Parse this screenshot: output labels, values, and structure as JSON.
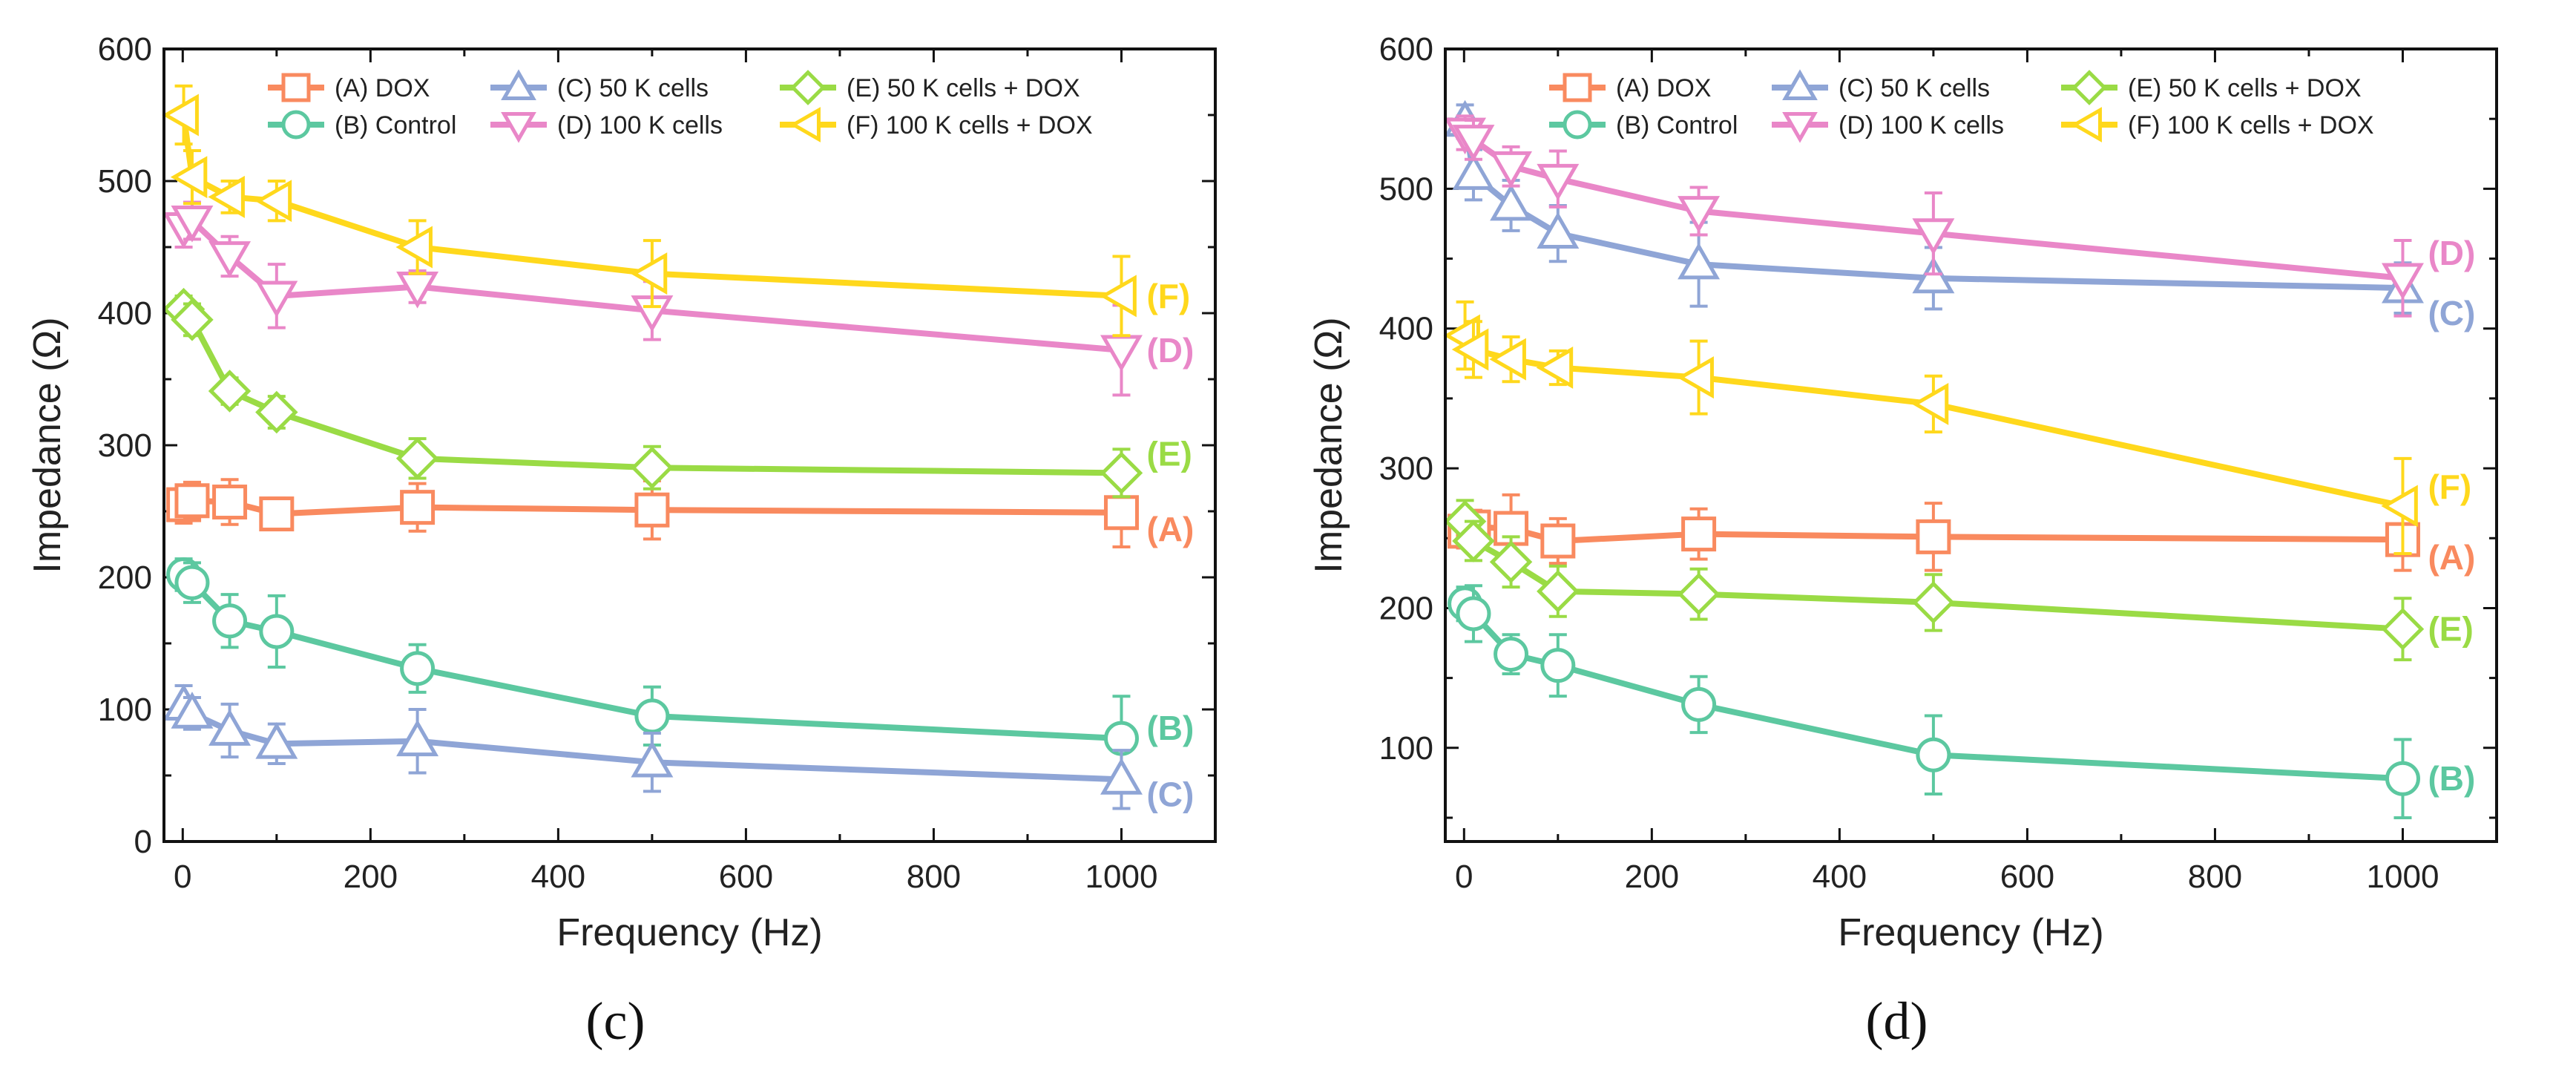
{
  "chart_data": [
    {
      "type": "line",
      "panel_label": "(c)",
      "xlabel": "Frequency (Hz)",
      "ylabel": "Impedance (Ω)",
      "xlim": [
        -20,
        1100
      ],
      "ylim": [
        0,
        600
      ],
      "xticks": [
        0,
        200,
        400,
        600,
        800,
        1000
      ],
      "yticks": [
        0,
        100,
        200,
        300,
        400,
        500,
        600
      ],
      "x": [
        1,
        10,
        50,
        100,
        250,
        500,
        1000
      ],
      "legend_position": "top",
      "series": [
        {
          "name": "(A) DOX",
          "tag": "(A)",
          "marker": "square",
          "color": "#F98A5F",
          "values": [
            255,
            258,
            257,
            248,
            253,
            251,
            249
          ],
          "err": [
            14,
            14,
            17,
            12,
            18,
            22,
            26
          ]
        },
        {
          "name": "(B) Control",
          "tag": "(B)",
          "marker": "circle",
          "color": "#5CC8A0",
          "values": [
            202,
            196,
            167,
            159,
            131,
            95,
            78
          ],
          "err": [
            12,
            15,
            20,
            27,
            18,
            22,
            32
          ]
        },
        {
          "name": "(C) 50 K cells",
          "tag": "(C)",
          "marker": "triangle-up",
          "color": "#8FA5D6",
          "values": [
            103,
            97,
            84,
            74,
            76,
            60,
            47
          ],
          "err": [
            15,
            12,
            20,
            15,
            24,
            22,
            22
          ]
        },
        {
          "name": "(D) 100 K cells",
          "tag": "(D)",
          "marker": "triangle-down",
          "color": "#E987C8",
          "values": [
            465,
            470,
            443,
            413,
            420,
            402,
            372
          ],
          "err": [
            15,
            14,
            15,
            24,
            12,
            22,
            34
          ]
        },
        {
          "name": "(E) 50 K cells + DOX",
          "tag": "(E)",
          "marker": "diamond",
          "color": "#9ADB45",
          "values": [
            403,
            395,
            341,
            325,
            290,
            283,
            279
          ],
          "err": [
            10,
            12,
            10,
            12,
            15,
            16,
            18
          ]
        },
        {
          "name": "(F) 100 K cells + DOX",
          "tag": "(F)",
          "marker": "triangle-left",
          "color": "#FFD81C",
          "values": [
            550,
            503,
            488,
            485,
            450,
            430,
            413
          ],
          "err": [
            22,
            20,
            12,
            15,
            20,
            25,
            30
          ]
        }
      ]
    },
    {
      "type": "line",
      "panel_label": "(d)",
      "xlabel": "Frequency (Hz)",
      "ylabel": "Impedance (Ω)",
      "xlim": [
        -20,
        1100
      ],
      "ylim": [
        33,
        600
      ],
      "xticks": [
        0,
        200,
        400,
        600,
        800,
        1000
      ],
      "yticks": [
        100,
        200,
        300,
        400,
        500,
        600
      ],
      "x": [
        1,
        10,
        50,
        100,
        250,
        500,
        1000
      ],
      "legend_position": "top",
      "series": [
        {
          "name": "(A) DOX",
          "tag": "(A)",
          "marker": "square",
          "color": "#F98A5F",
          "values": [
            255,
            258,
            257,
            248,
            253,
            251,
            249
          ],
          "err": [
            12,
            12,
            24,
            16,
            18,
            24,
            22
          ]
        },
        {
          "name": "(B) Control",
          "tag": "(B)",
          "marker": "circle",
          "color": "#5CC8A0",
          "values": [
            203,
            196,
            167,
            159,
            131,
            95,
            78
          ],
          "err": [
            12,
            20,
            14,
            22,
            20,
            28,
            28
          ]
        },
        {
          "name": "(C) 50 K cells",
          "tag": "(C)",
          "marker": "triangle-up",
          "color": "#8FA5D6",
          "values": [
            548,
            510,
            488,
            468,
            446,
            436,
            429
          ],
          "err": [
            12,
            18,
            18,
            20,
            30,
            22,
            18
          ]
        },
        {
          "name": "(D) 100 K cells",
          "tag": "(D)",
          "marker": "triangle-down",
          "color": "#E987C8",
          "values": [
            540,
            535,
            516,
            507,
            484,
            468,
            436
          ],
          "err": [
            12,
            14,
            14,
            20,
            17,
            29,
            27
          ]
        },
        {
          "name": "(E) 50 K cells + DOX",
          "tag": "(E)",
          "marker": "diamond",
          "color": "#9ADB45",
          "values": [
            262,
            248,
            233,
            212,
            210,
            204,
            185
          ],
          "err": [
            15,
            14,
            18,
            18,
            18,
            20,
            22
          ]
        },
        {
          "name": "(F) 100 K cells + DOX",
          "tag": "(F)",
          "marker": "triangle-left",
          "color": "#FFD81C",
          "values": [
            395,
            385,
            378,
            372,
            365,
            346,
            273
          ],
          "err": [
            24,
            20,
            16,
            12,
            26,
            20,
            34
          ]
        }
      ]
    }
  ]
}
